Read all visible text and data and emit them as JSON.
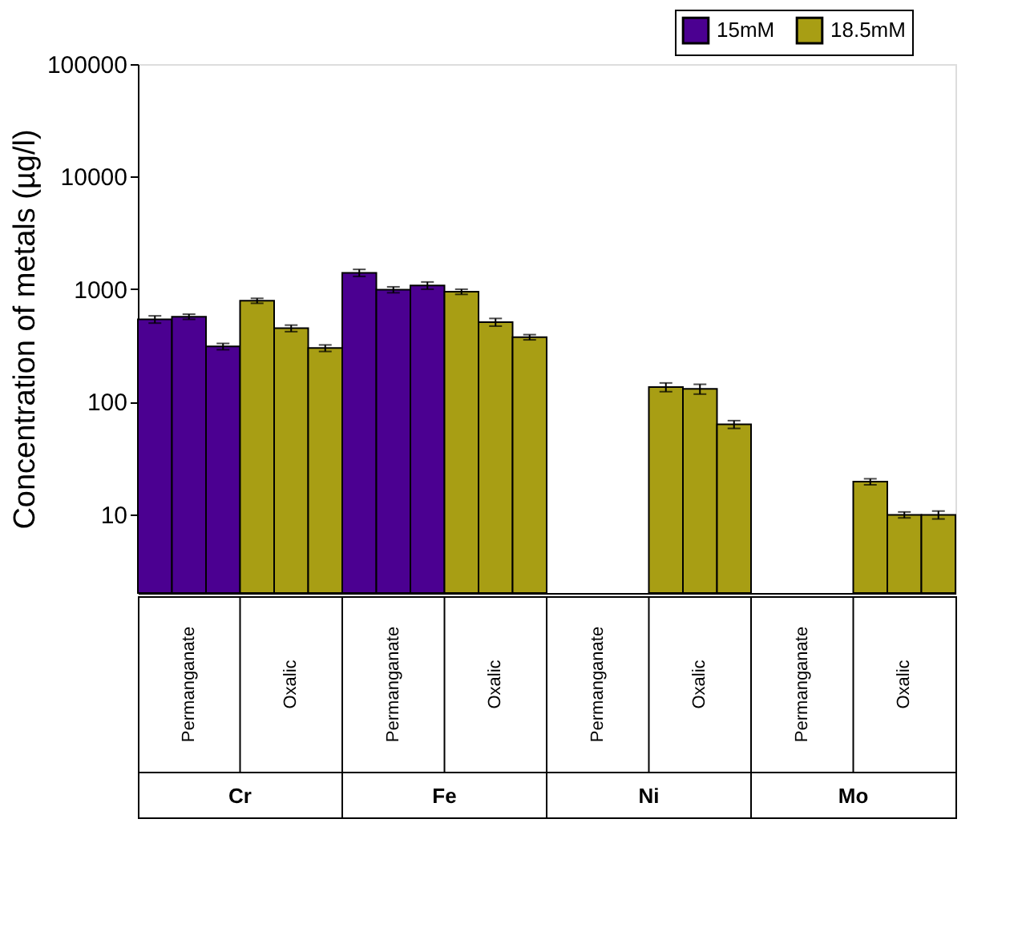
{
  "chart_data": {
    "type": "bar",
    "ylabel": "Concentration of metals (µg/l)",
    "categories": [
      "Permanganate",
      "Oxalic",
      "Permanganate",
      "Oxalic",
      "Permanganate",
      "Oxalic",
      "Permanganate",
      "Oxalic"
    ],
    "annotations": [
      "Cr",
      "Fe",
      "Ni",
      "Mo"
    ],
    "series": [
      {
        "name": "15mM",
        "color": "#4b0091",
        "values": [
          540,
          null,
          1400,
          null,
          null,
          null,
          null,
          null
        ],
        "errors": [
          40,
          null,
          100,
          null,
          null,
          null,
          null,
          null
        ]
      },
      {
        "color": "#4b0091",
        "values": [
          570,
          null,
          990,
          null,
          null,
          null,
          null,
          null
        ],
        "errors": [
          30,
          null,
          60,
          null,
          null,
          null,
          null,
          null
        ]
      },
      {
        "color": "#4b0091",
        "values": [
          310,
          null,
          1080,
          null,
          null,
          null,
          null,
          null
        ],
        "errors": [
          20,
          null,
          80,
          null,
          null,
          null,
          null,
          null
        ]
      },
      {
        "name": "18.5mM",
        "color": "#a89e14",
        "values": [
          null,
          790,
          null,
          950,
          null,
          135,
          null,
          19.5
        ],
        "errors": [
          null,
          40,
          null,
          50,
          null,
          12,
          null,
          1.2
        ]
      },
      {
        "color": "#a89e14",
        "values": [
          null,
          450,
          null,
          510,
          null,
          130,
          null,
          9.9
        ],
        "errors": [
          null,
          30,
          null,
          40,
          null,
          13,
          null,
          0.6
        ]
      },
      {
        "color": "#a89e14",
        "values": [
          null,
          300,
          null,
          375,
          null,
          63,
          null,
          9.9
        ],
        "errors": [
          null,
          20,
          null,
          20,
          null,
          5,
          null,
          0.8
        ]
      }
    ],
    "log": true,
    "ylim": [
      2,
      100000
    ],
    "yticks": [
      10,
      100,
      1000,
      10000,
      100000
    ],
    "grid": false,
    "legend": "top right"
  }
}
